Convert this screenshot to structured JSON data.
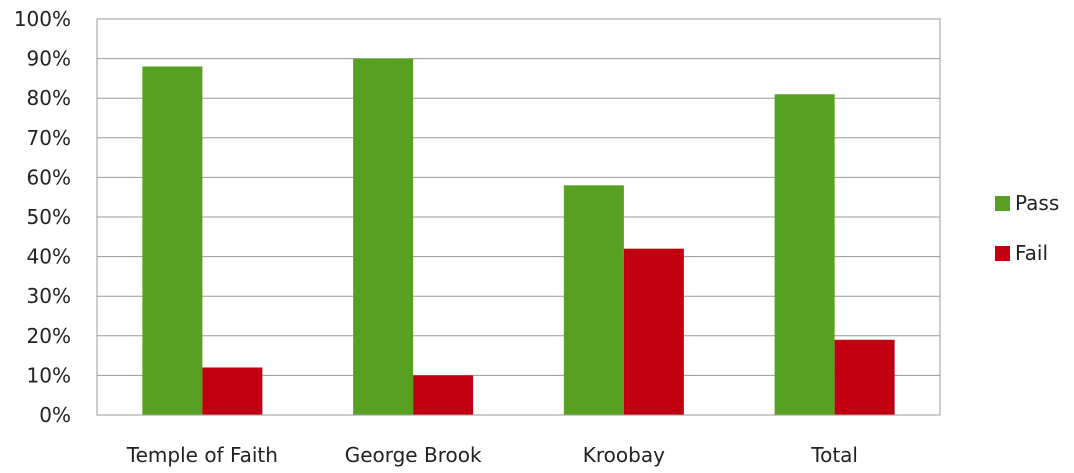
{
  "chart_data": {
    "type": "bar",
    "categories": [
      "Temple of Faith",
      "George Brook",
      "Kroobay",
      "Total"
    ],
    "series": [
      {
        "name": "Pass",
        "values": [
          88,
          90,
          58,
          81
        ],
        "color": "#57A021"
      },
      {
        "name": "Fail",
        "values": [
          12,
          10,
          42,
          19
        ],
        "color": "#C00010"
      }
    ],
    "ylim": [
      0,
      100
    ],
    "yticks": [
      "0%",
      "10%",
      "20%",
      "30%",
      "40%",
      "50%",
      "60%",
      "70%",
      "80%",
      "90%",
      "100%"
    ],
    "grid": true,
    "legend_position": "right"
  }
}
